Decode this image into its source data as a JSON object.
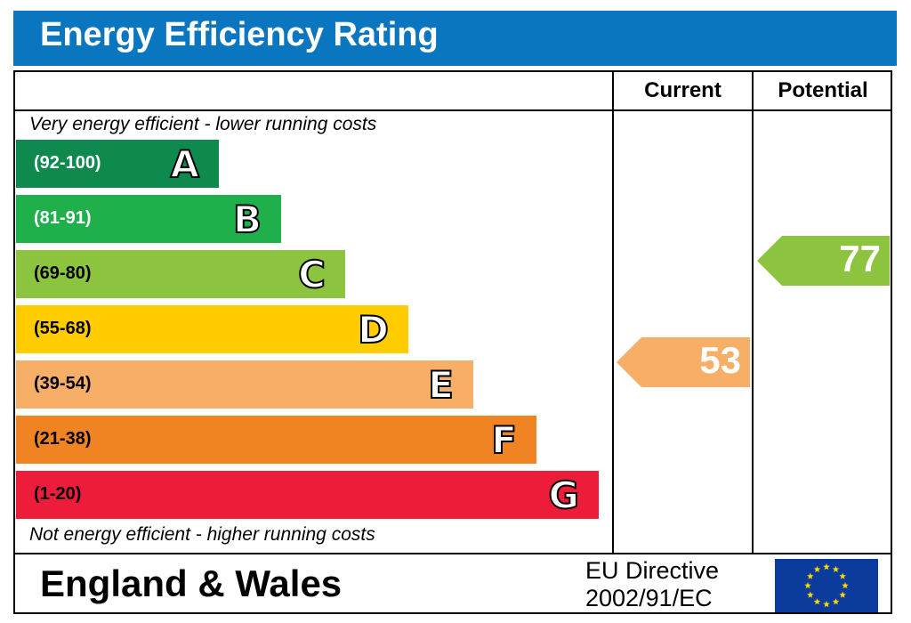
{
  "title": "Energy Efficiency Rating",
  "columns": {
    "current": "Current",
    "potential": "Potential"
  },
  "top_note": "Very energy efficient - lower running costs",
  "bottom_note": "Not energy efficient - higher running costs",
  "region": "England & Wales",
  "directive_line1": "EU Directive",
  "directive_line2": "2002/91/EC",
  "colors": {
    "header": "#0b76c0",
    "flag": "#0b3b9c",
    "star": "#ffd700"
  },
  "chart_data": {
    "type": "bar",
    "bands": [
      {
        "range": "(92-100)",
        "letter": "A",
        "color": "#0e8a4f",
        "range_color": "#ffffff"
      },
      {
        "range": "(81-91)",
        "letter": "B",
        "color": "#1fb04c",
        "range_color": "#ffffff"
      },
      {
        "range": "(69-80)",
        "letter": "C",
        "color": "#8cc43f",
        "range_color": "#000000"
      },
      {
        "range": "(55-68)",
        "letter": "D",
        "color": "#ffcc00",
        "range_color": "#000000"
      },
      {
        "range": "(39-54)",
        "letter": "E",
        "color": "#f7ae66",
        "range_color": "#000000"
      },
      {
        "range": "(21-38)",
        "letter": "F",
        "color": "#f18422",
        "range_color": "#000000"
      },
      {
        "range": "(1-20)",
        "letter": "G",
        "color": "#ec1c3a",
        "range_color": "#000000"
      }
    ],
    "current": {
      "value": "53",
      "band": "E",
      "color": "#f7ae66"
    },
    "potential": {
      "value": "77",
      "band": "C",
      "color": "#8cc43f"
    }
  }
}
